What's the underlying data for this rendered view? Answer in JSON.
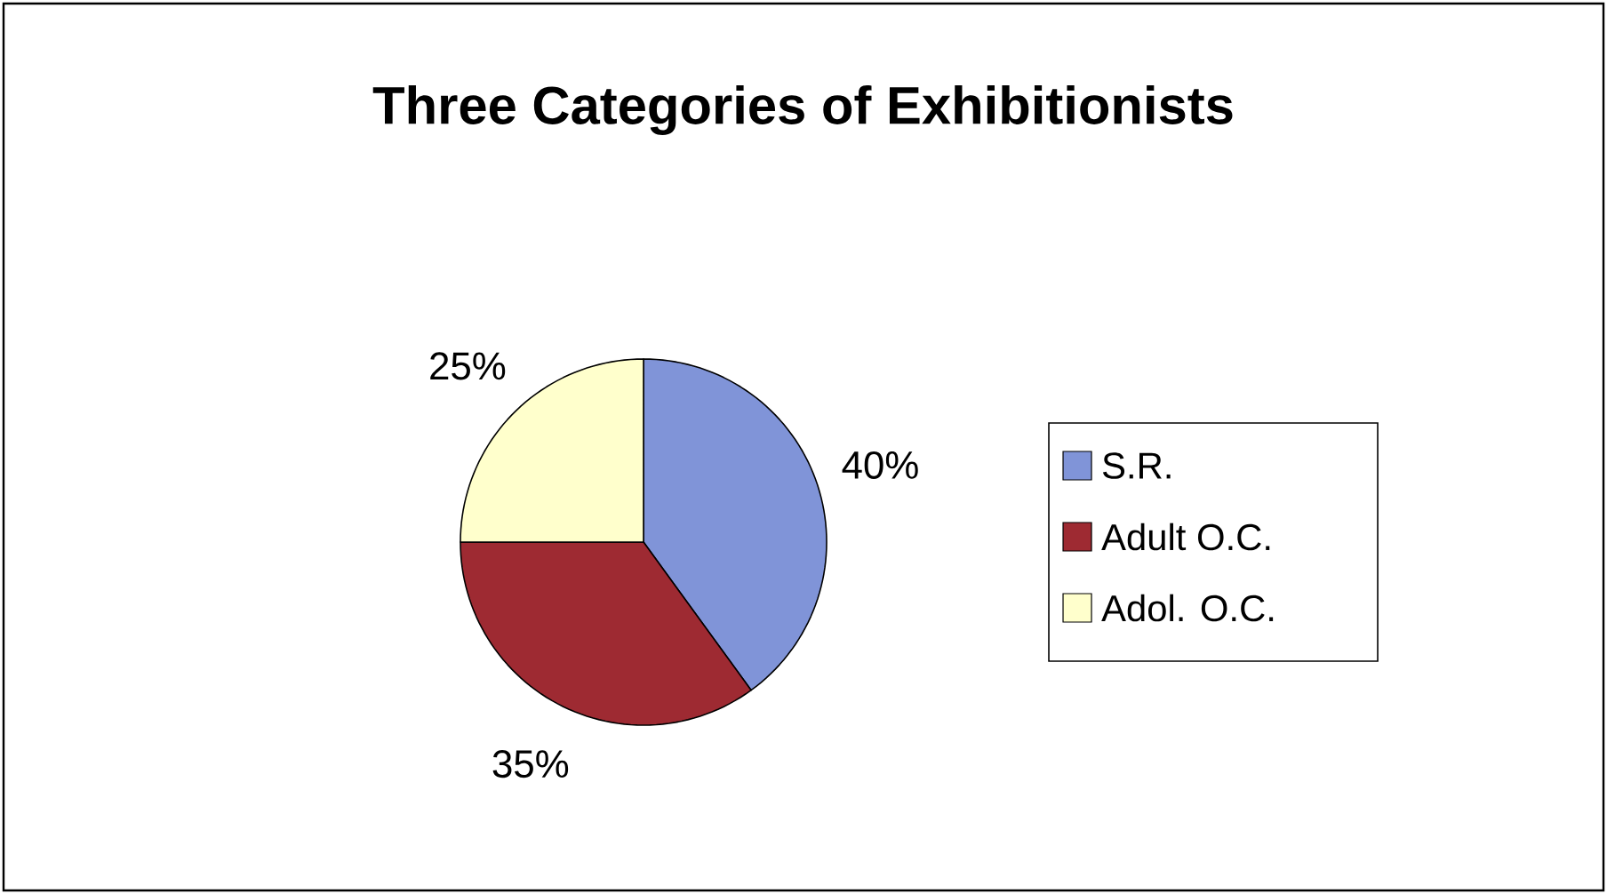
{
  "chart_data": {
    "type": "pie",
    "title": "Three Categories of Exhibitionists",
    "categories": [
      "S.R.",
      "Adult O.C.",
      "Adol. O.C."
    ],
    "values": [
      40,
      35,
      25
    ],
    "colors": [
      "#8094d8",
      "#9e2a32",
      "#ffffcc"
    ],
    "value_labels": [
      "40%",
      "35%",
      "25%"
    ],
    "legend": "right"
  }
}
